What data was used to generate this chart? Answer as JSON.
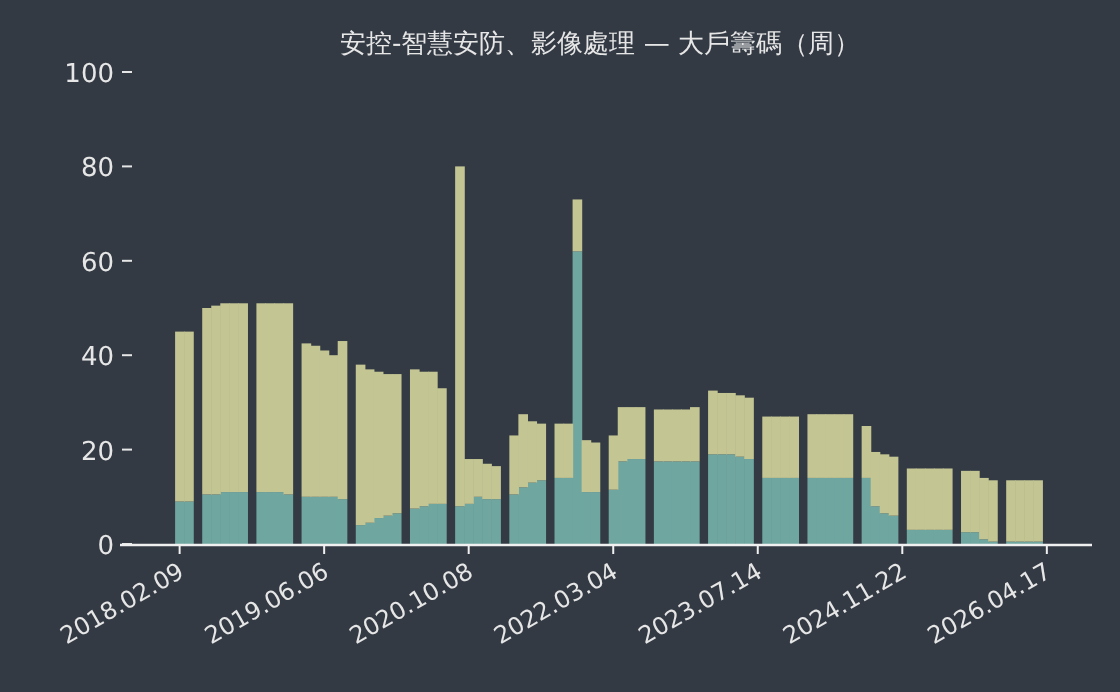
{
  "chart_data": {
    "type": "bar",
    "title": "安控-智慧安防、影像處理 — 大戶籌碼（周）",
    "categories": [
      "2018.02.09",
      null,
      null,
      null,
      null,
      null,
      null,
      null,
      null,
      null,
      null,
      null,
      null,
      null,
      null,
      null,
      "2019.06.06",
      null,
      null,
      null,
      null,
      null,
      null,
      null,
      null,
      null,
      null,
      null,
      null,
      null,
      null,
      null,
      "2020.10.08",
      null,
      null,
      null,
      null,
      null,
      null,
      null,
      null,
      null,
      null,
      null,
      null,
      null,
      null,
      null,
      "2022.03.04",
      null,
      null,
      null,
      null,
      null,
      null,
      null,
      null,
      null,
      null,
      null,
      null,
      null,
      null,
      null,
      "2023.07.14",
      null,
      null,
      null,
      null,
      null,
      null,
      null,
      null,
      null,
      null,
      null,
      null,
      null,
      null,
      null,
      "2024.11.22",
      null,
      null,
      null,
      null,
      null,
      null,
      null,
      null,
      null,
      null,
      null,
      null,
      null,
      null,
      null,
      "2026.04.17"
    ],
    "stacked": true,
    "series": [
      {
        "color": "#6fa6a0",
        "values": [
          9,
          9,
          null,
          10.5,
          10.5,
          11,
          11,
          11,
          null,
          11,
          11,
          11,
          10.5,
          null,
          10,
          10,
          10,
          10,
          9.5,
          null,
          4,
          4.5,
          5.5,
          6,
          6.5,
          null,
          7.5,
          8,
          8.5,
          8.5,
          null,
          8,
          8.5,
          10,
          9.5,
          9.5,
          null,
          10.5,
          12,
          13,
          13.5,
          null,
          14,
          14,
          62,
          11,
          11,
          null,
          11.5,
          17.5,
          18,
          18,
          null,
          17.5,
          17.5,
          17.5,
          17.5,
          17.5,
          null,
          19,
          19,
          19,
          18.5,
          18,
          null,
          14,
          14,
          14,
          14,
          null,
          14,
          14,
          14,
          14,
          14,
          null,
          14,
          8,
          6.5,
          6,
          null,
          3,
          3,
          3,
          3,
          3,
          null,
          2.5,
          2.5,
          1,
          0.5,
          null,
          0.5,
          0.5,
          0.5,
          0.5,
          null
        ]
      },
      {
        "color": "#c3c593",
        "values": [
          36,
          36,
          null,
          39.5,
          40,
          40,
          40,
          40,
          null,
          40,
          40,
          40,
          40.5,
          null,
          32.5,
          32,
          31,
          30,
          33.5,
          null,
          34,
          32.5,
          31,
          30,
          29.5,
          null,
          29.5,
          28.5,
          28,
          24.5,
          null,
          72,
          9.5,
          8,
          7.5,
          7,
          null,
          12.5,
          15.5,
          13,
          12,
          null,
          11.5,
          11.5,
          11,
          11,
          10.5,
          null,
          11.5,
          11.5,
          11,
          11,
          null,
          11,
          11,
          11,
          11,
          11.5,
          null,
          13.5,
          13,
          13,
          13,
          13,
          null,
          13,
          13,
          13,
          13,
          null,
          13.5,
          13.5,
          13.5,
          13.5,
          13.5,
          null,
          11,
          11.5,
          12.5,
          12.5,
          null,
          13,
          13,
          13,
          13,
          13,
          null,
          13,
          13,
          13,
          13,
          null,
          13,
          13,
          13,
          13,
          null
        ]
      }
    ],
    "ylim": [
      0,
      100
    ],
    "yticks": [
      0,
      20,
      40,
      60,
      80,
      100
    ]
  }
}
